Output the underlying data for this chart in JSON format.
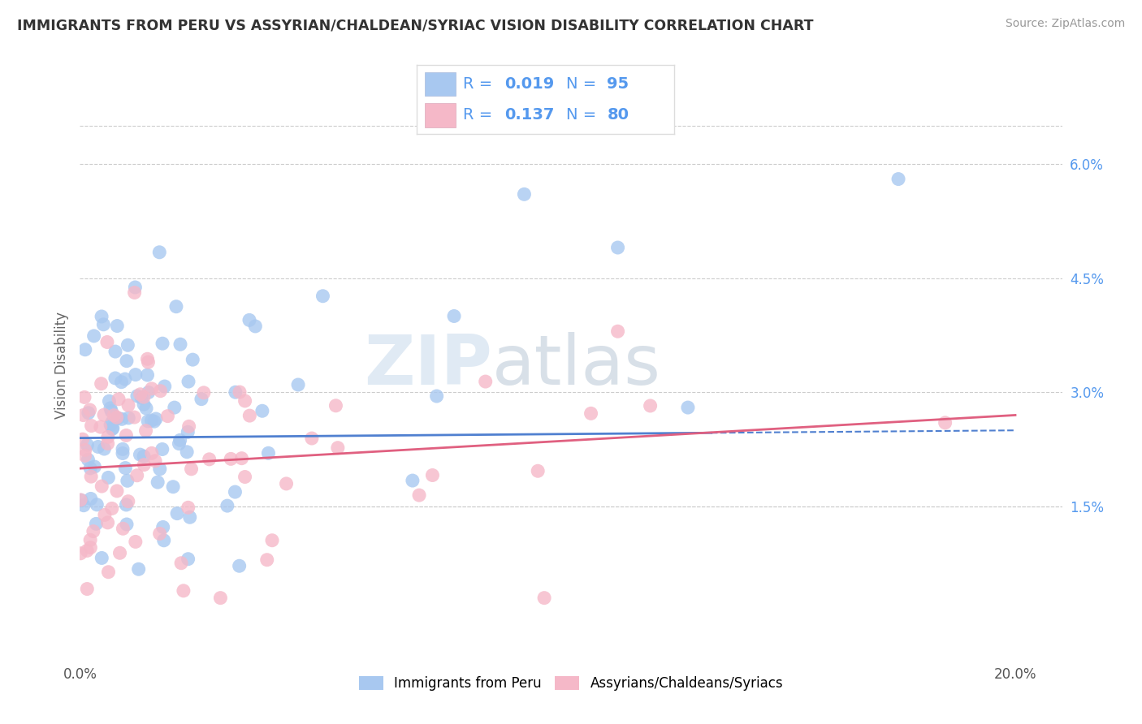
{
  "title": "IMMIGRANTS FROM PERU VS ASSYRIAN/CHALDEAN/SYRIAC VISION DISABILITY CORRELATION CHART",
  "source": "Source: ZipAtlas.com",
  "xlabel_blue": "Immigrants from Peru",
  "xlabel_pink": "Assyrians/Chaldeans/Syriacs",
  "ylabel": "Vision Disability",
  "xlim": [
    0.0,
    0.21
  ],
  "ylim": [
    -0.005,
    0.072
  ],
  "yticks_right": [
    0.015,
    0.03,
    0.045,
    0.06
  ],
  "ytick_labels_right": [
    "1.5%",
    "3.0%",
    "4.5%",
    "6.0%"
  ],
  "legend_r_blue": "0.019",
  "legend_n_blue": "95",
  "legend_r_pink": "0.137",
  "legend_n_pink": "80",
  "color_blue": "#A8C8F0",
  "color_pink": "#F5B8C8",
  "color_trendline_blue": "#5080D0",
  "color_trendline_pink": "#E06080",
  "legend_text_color": "#5599EE",
  "watermark_zip": "ZIP",
  "watermark_atlas": "atlas",
  "background_color": "#FFFFFF",
  "grid_color": "#CCCCCC",
  "tick_label_color": "#5599EE",
  "title_color": "#333333",
  "source_color": "#999999",
  "ylabel_color": "#666666"
}
